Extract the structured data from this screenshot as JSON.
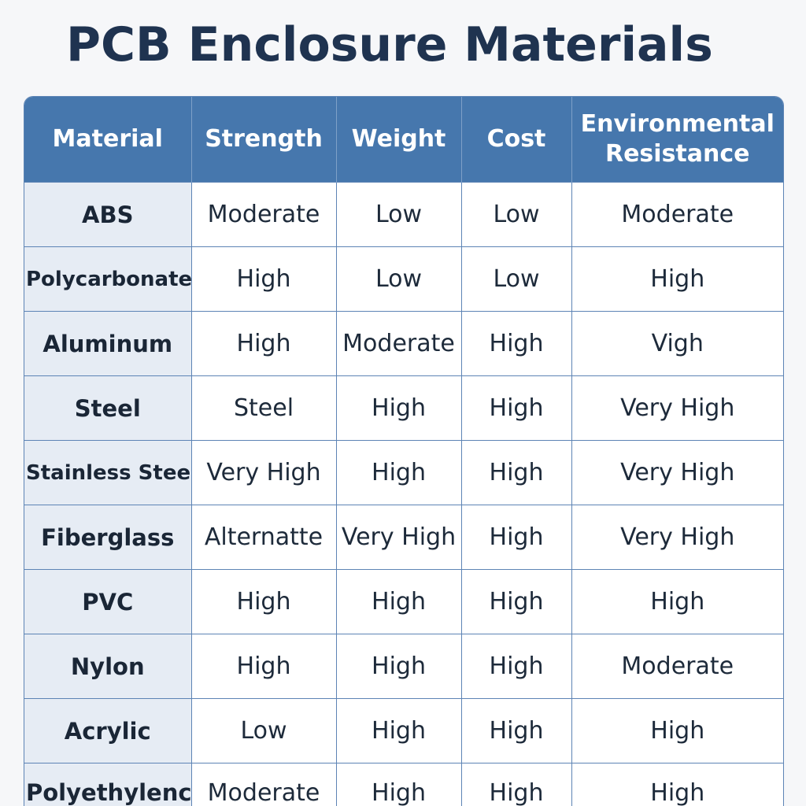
{
  "title": "PCB Enclosure Materials",
  "table": {
    "headers": [
      "Material",
      "Strength",
      "Weight",
      "Cost",
      "Environmental\nResistance"
    ],
    "rows": [
      [
        "ABS",
        "Moderate",
        "Low",
        "Low",
        "Moderate"
      ],
      [
        "Polycarbonate",
        "High",
        "Low",
        "Low",
        "High"
      ],
      [
        "Aluminum",
        "High",
        "Moderate",
        "High",
        "Vigh"
      ],
      [
        "Steel",
        "Steel",
        "High",
        "High",
        "Very High"
      ],
      [
        "Stainless Steel",
        "Very High",
        "High",
        "High",
        "Very High"
      ],
      [
        "Fiberglass",
        "Alternatte",
        "Very High",
        "High",
        "Very High"
      ],
      [
        "PVC",
        "High",
        "High",
        "High",
        "High"
      ],
      [
        "Nylon",
        "High",
        "High",
        "High",
        "Moderate"
      ],
      [
        "Acrylic",
        "Low",
        "High",
        "High",
        "High"
      ],
      [
        "Polyethylenc",
        "Moderate",
        "High",
        "High",
        "High"
      ]
    ]
  },
  "colors": {
    "header_bg": "#4677ad",
    "title": "#1f3350",
    "first_col_bg": "#e6ecf4",
    "grid": "#5d84b5"
  }
}
